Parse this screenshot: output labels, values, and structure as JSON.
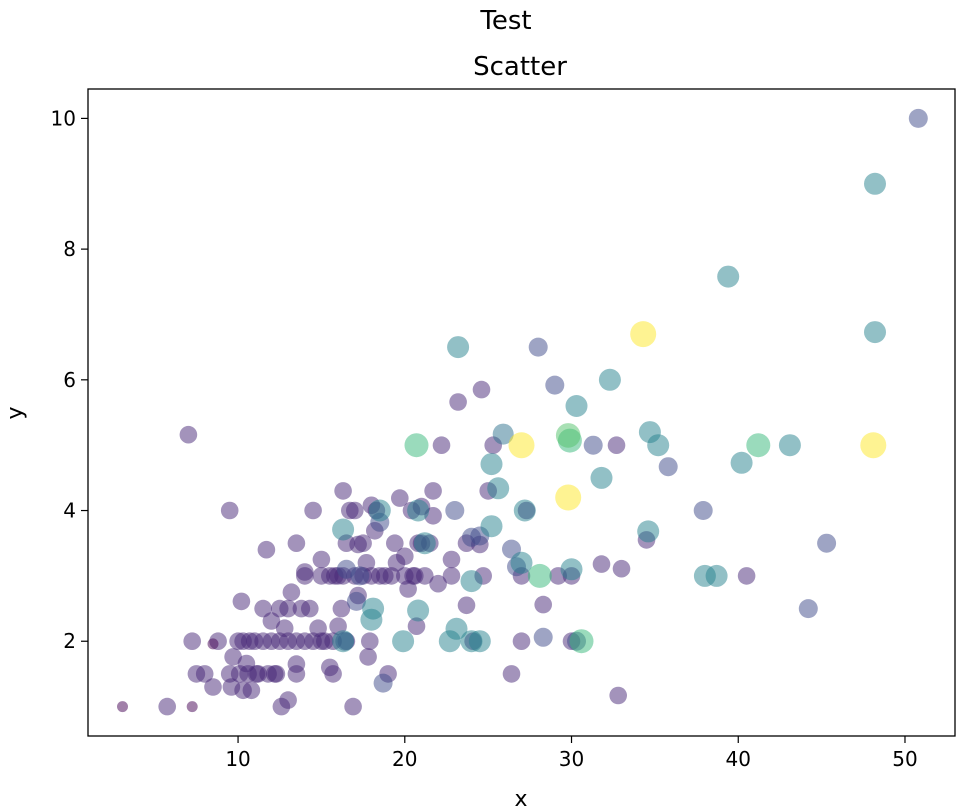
{
  "chart_data": {
    "type": "scatter",
    "suptitle": "Test",
    "title": "Scatter",
    "xlabel": "x",
    "ylabel": "y",
    "xlim": [
      1,
      53
    ],
    "ylim": [
      0.55,
      10.45
    ],
    "xticks": [
      10,
      20,
      30,
      40,
      50
    ],
    "yticks": [
      2,
      4,
      6,
      8,
      10
    ],
    "grid": false,
    "colormap": "viridis",
    "alpha": 0.5,
    "size_encodes": "color value (larger = more yellow)",
    "points": [
      [
        3.07,
        1.0,
        0.0
      ],
      [
        5.75,
        1.0,
        0.15
      ],
      [
        7.25,
        1.0,
        0.0
      ],
      [
        7.02,
        5.16,
        0.15
      ],
      [
        7.25,
        2.0,
        0.15
      ],
      [
        7.5,
        1.5,
        0.15
      ],
      [
        8.0,
        1.5,
        0.15
      ],
      [
        8.5,
        1.3,
        0.15
      ],
      [
        8.8,
        2.0,
        0.15
      ],
      [
        8.5,
        1.96,
        0.0
      ],
      [
        9.5,
        4.0,
        0.15
      ],
      [
        9.5,
        1.5,
        0.15
      ],
      [
        9.6,
        1.3,
        0.15
      ],
      [
        9.7,
        1.76,
        0.15
      ],
      [
        10.0,
        2.0,
        0.15
      ],
      [
        10.1,
        1.5,
        0.15
      ],
      [
        10.2,
        2.61,
        0.15
      ],
      [
        10.3,
        1.25,
        0.15
      ],
      [
        10.3,
        2.0,
        0.15
      ],
      [
        10.5,
        1.66,
        0.15
      ],
      [
        10.6,
        1.5,
        0.15
      ],
      [
        10.7,
        2.0,
        0.15
      ],
      [
        10.8,
        1.25,
        0.15
      ],
      [
        11.0,
        2.0,
        0.15
      ],
      [
        11.1,
        1.5,
        0.15
      ],
      [
        11.2,
        1.5,
        0.15
      ],
      [
        11.5,
        2.0,
        0.15
      ],
      [
        11.5,
        2.5,
        0.15
      ],
      [
        11.7,
        3.4,
        0.15
      ],
      [
        11.8,
        1.5,
        0.15
      ],
      [
        12.0,
        2.0,
        0.15
      ],
      [
        12.0,
        2.31,
        0.15
      ],
      [
        12.2,
        1.5,
        0.15
      ],
      [
        12.3,
        1.5,
        0.15
      ],
      [
        12.5,
        2.5,
        0.15
      ],
      [
        12.5,
        2.0,
        0.15
      ],
      [
        12.6,
        1.0,
        0.15
      ],
      [
        12.8,
        2.2,
        0.15
      ],
      [
        13.0,
        2.0,
        0.15
      ],
      [
        13.0,
        1.1,
        0.15
      ],
      [
        13.0,
        2.5,
        0.15
      ],
      [
        13.2,
        2.75,
        0.15
      ],
      [
        13.5,
        2.0,
        0.15
      ],
      [
        13.5,
        3.5,
        0.15
      ],
      [
        13.5,
        1.5,
        0.15
      ],
      [
        13.5,
        1.65,
        0.15
      ],
      [
        13.8,
        2.5,
        0.15
      ],
      [
        14.0,
        2.0,
        0.15
      ],
      [
        14.0,
        3.0,
        0.15
      ],
      [
        14.0,
        3.06,
        0.15
      ],
      [
        14.3,
        2.5,
        0.15
      ],
      [
        14.5,
        2.0,
        0.15
      ],
      [
        14.5,
        4.0,
        0.15
      ],
      [
        14.8,
        2.2,
        0.15
      ],
      [
        15.0,
        2.0,
        0.15
      ],
      [
        15.0,
        3.25,
        0.15
      ],
      [
        15.0,
        3.0,
        0.15
      ],
      [
        15.2,
        2.0,
        0.15
      ],
      [
        15.5,
        3.0,
        0.15
      ],
      [
        15.5,
        1.6,
        0.15
      ],
      [
        15.7,
        1.5,
        0.15
      ],
      [
        15.7,
        2.0,
        0.15
      ],
      [
        15.8,
        3.0,
        0.15
      ],
      [
        16.0,
        2.23,
        0.15
      ],
      [
        16.0,
        3.0,
        0.15
      ],
      [
        16.2,
        2.5,
        0.15
      ],
      [
        16.3,
        4.3,
        0.15
      ],
      [
        16.3,
        3.0,
        0.15
      ],
      [
        16.5,
        3.5,
        0.15
      ],
      [
        16.5,
        2.0,
        0.15
      ],
      [
        16.7,
        4.0,
        0.15
      ],
      [
        16.9,
        1.0,
        0.15
      ],
      [
        17.0,
        4.0,
        0.15
      ],
      [
        17.0,
        3.0,
        0.15
      ],
      [
        17.2,
        2.7,
        0.15
      ],
      [
        17.2,
        3.48,
        0.15
      ],
      [
        17.5,
        3.0,
        0.15
      ],
      [
        17.5,
        3.5,
        0.15
      ],
      [
        17.7,
        3.2,
        0.15
      ],
      [
        17.8,
        1.76,
        0.15
      ],
      [
        17.9,
        2.0,
        0.15
      ],
      [
        18.0,
        4.08,
        0.15
      ],
      [
        18.0,
        3.0,
        0.15
      ],
      [
        18.2,
        3.69,
        0.15
      ],
      [
        18.3,
        4.0,
        0.15
      ],
      [
        18.5,
        3.0,
        0.15
      ],
      [
        18.8,
        3.0,
        0.15
      ],
      [
        19.0,
        1.5,
        0.15
      ],
      [
        19.2,
        3.0,
        0.15
      ],
      [
        19.4,
        3.5,
        0.15
      ],
      [
        19.5,
        3.2,
        0.15
      ],
      [
        19.7,
        4.19,
        0.15
      ],
      [
        20.0,
        3.0,
        0.15
      ],
      [
        20.0,
        3.3,
        0.15
      ],
      [
        20.2,
        2.8,
        0.15
      ],
      [
        20.4,
        4.0,
        0.15
      ],
      [
        20.5,
        3.0,
        0.15
      ],
      [
        20.6,
        3.0,
        0.15
      ],
      [
        20.7,
        2.23,
        0.15
      ],
      [
        20.8,
        3.5,
        0.15
      ],
      [
        21.0,
        3.5,
        0.15
      ],
      [
        21.0,
        4.06,
        0.15
      ],
      [
        21.2,
        3.0,
        0.15
      ],
      [
        21.5,
        3.5,
        0.15
      ],
      [
        21.7,
        4.3,
        0.15
      ],
      [
        21.7,
        3.92,
        0.15
      ],
      [
        22.0,
        2.88,
        0.15
      ],
      [
        22.2,
        5.0,
        0.15
      ],
      [
        22.8,
        3.0,
        0.15
      ],
      [
        22.8,
        3.25,
        0.15
      ],
      [
        23.2,
        5.66,
        0.15
      ],
      [
        23.7,
        3.5,
        0.15
      ],
      [
        23.7,
        2.55,
        0.15
      ],
      [
        24.1,
        2.0,
        0.15
      ],
      [
        24.5,
        3.48,
        0.15
      ],
      [
        24.6,
        5.85,
        0.15
      ],
      [
        24.7,
        3.0,
        0.15
      ],
      [
        25.0,
        4.3,
        0.15
      ],
      [
        25.3,
        5.0,
        0.15
      ],
      [
        26.4,
        1.5,
        0.15
      ],
      [
        27.0,
        3.0,
        0.15
      ],
      [
        27.0,
        2.0,
        0.15
      ],
      [
        27.3,
        4.0,
        0.15
      ],
      [
        28.0,
        6.5,
        0.3
      ],
      [
        28.3,
        2.56,
        0.15
      ],
      [
        29.0,
        5.92,
        0.3
      ],
      [
        29.2,
        3.0,
        0.15
      ],
      [
        30.0,
        2.0,
        0.15
      ],
      [
        30.0,
        3.0,
        0.15
      ],
      [
        31.3,
        5.0,
        0.3
      ],
      [
        31.8,
        3.18,
        0.15
      ],
      [
        32.7,
        5.0,
        0.15
      ],
      [
        32.8,
        1.17,
        0.15
      ],
      [
        33.0,
        3.11,
        0.15
      ],
      [
        34.5,
        3.55,
        0.15
      ],
      [
        35.8,
        4.67,
        0.3
      ],
      [
        37.9,
        4.0,
        0.3
      ],
      [
        40.5,
        3.0,
        0.15
      ],
      [
        44.2,
        2.5,
        0.3
      ],
      [
        45.3,
        3.5,
        0.3
      ],
      [
        50.8,
        10.0,
        0.3
      ],
      [
        23.0,
        4.0,
        0.3
      ],
      [
        24.0,
        3.59,
        0.3
      ],
      [
        24.5,
        3.61,
        0.3
      ],
      [
        25.9,
        5.17,
        0.5
      ],
      [
        26.4,
        3.41,
        0.3
      ],
      [
        26.7,
        3.14,
        0.3
      ],
      [
        28.3,
        2.06,
        0.3
      ],
      [
        30.3,
        2.0,
        0.3
      ],
      [
        18.7,
        1.36,
        0.3
      ],
      [
        16.5,
        3.1,
        0.3
      ],
      [
        17.3,
        3.0,
        0.3
      ],
      [
        16.4,
        2.0,
        0.3
      ],
      [
        17.1,
        2.61,
        0.3
      ],
      [
        18.5,
        3.82,
        0.3
      ],
      [
        16.3,
        3.71,
        0.6
      ],
      [
        18.5,
        4.0,
        0.6
      ],
      [
        18.0,
        2.33,
        0.6
      ],
      [
        18.1,
        2.5,
        0.6
      ],
      [
        19.9,
        2.0,
        0.6
      ],
      [
        20.8,
        4.0,
        0.6
      ],
      [
        20.8,
        2.47,
        0.6
      ],
      [
        21.2,
        3.5,
        0.6
      ],
      [
        22.7,
        2.0,
        0.6
      ],
      [
        23.1,
        2.19,
        0.6
      ],
      [
        23.2,
        6.5,
        0.6
      ],
      [
        24.0,
        2.92,
        0.6
      ],
      [
        24.0,
        2.0,
        0.6
      ],
      [
        24.5,
        2.0,
        0.6
      ],
      [
        25.2,
        3.76,
        0.6
      ],
      [
        25.2,
        4.71,
        0.6
      ],
      [
        25.6,
        4.34,
        0.6
      ],
      [
        27.0,
        3.2,
        0.6
      ],
      [
        27.2,
        4.0,
        0.6
      ],
      [
        30.0,
        3.1,
        0.6
      ],
      [
        30.3,
        5.6,
        0.6
      ],
      [
        31.8,
        4.5,
        0.6
      ],
      [
        32.3,
        6.0,
        0.6
      ],
      [
        34.6,
        3.68,
        0.6
      ],
      [
        34.7,
        5.2,
        0.6
      ],
      [
        35.2,
        5.0,
        0.6
      ],
      [
        38.0,
        3.0,
        0.6
      ],
      [
        38.7,
        3.0,
        0.6
      ],
      [
        39.4,
        7.58,
        0.6
      ],
      [
        40.2,
        4.73,
        0.6
      ],
      [
        43.1,
        5.0,
        0.6
      ],
      [
        48.2,
        9.0,
        0.6
      ],
      [
        48.2,
        6.73,
        0.6
      ],
      [
        16.3,
        2.0,
        0.6
      ],
      [
        20.7,
        5.0,
        0.8
      ],
      [
        28.1,
        3.0,
        0.8
      ],
      [
        29.9,
        5.07,
        0.8
      ],
      [
        30.6,
        2.0,
        0.8
      ],
      [
        41.2,
        5.0,
        0.8
      ],
      [
        29.8,
        5.15,
        0.85
      ],
      [
        27.0,
        5.0,
        1.0
      ],
      [
        29.8,
        4.2,
        1.0
      ],
      [
        34.3,
        6.7,
        1.0
      ],
      [
        48.1,
        5.0,
        1.0
      ]
    ]
  }
}
